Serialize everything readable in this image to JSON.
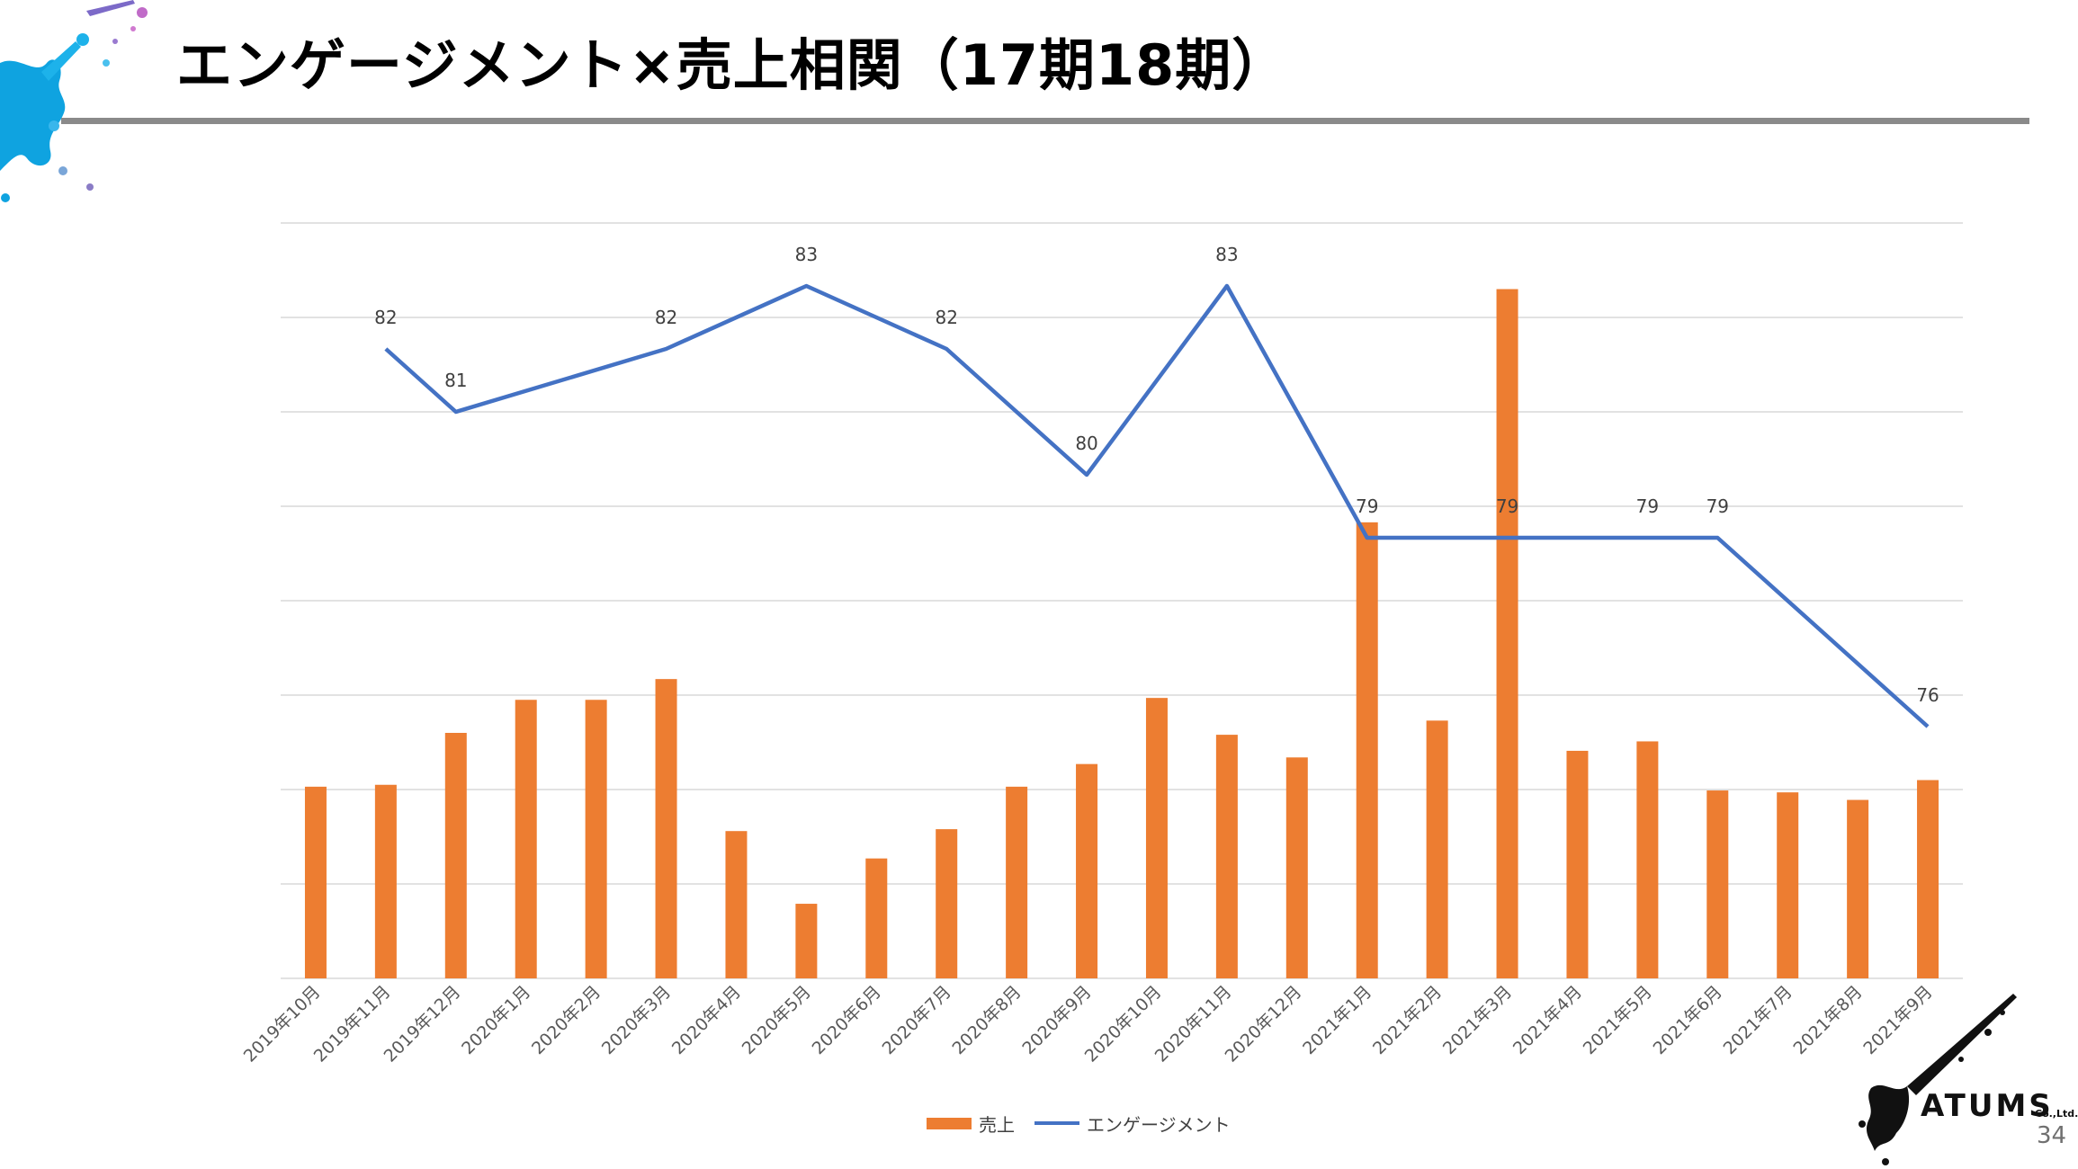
{
  "slide": {
    "title": "エンゲージメント×売上相関（17期18期）",
    "page_number": "34",
    "logo_text": "ATUMS",
    "logo_sub": "Co.,Ltd."
  },
  "colors": {
    "bar": "#ed7d31",
    "line": "#4472c4",
    "grid": "#d9d9d9",
    "rule": "#8a8a8a"
  },
  "chart_data": {
    "type": "bar+line",
    "title": "",
    "categories": [
      "2019年10月",
      "2019年11月",
      "2019年12月",
      "2020年1月",
      "2020年2月",
      "2020年3月",
      "2020年4月",
      "2020年5月",
      "2020年6月",
      "2020年7月",
      "2020年8月",
      "2020年9月",
      "2020年10月",
      "2020年11月",
      "2020年12月",
      "2021年1月",
      "2021年2月",
      "2021年3月",
      "2021年4月",
      "2021年5月",
      "2021年6月",
      "2021年7月",
      "2021年8月",
      "2021年9月"
    ],
    "series": [
      {
        "name": "売上",
        "type": "bar",
        "values": [
          2.03,
          2.05,
          2.6,
          2.95,
          2.95,
          3.17,
          1.56,
          0.79,
          1.27,
          1.58,
          2.03,
          2.27,
          2.97,
          2.58,
          2.34,
          4.83,
          2.73,
          7.3,
          2.41,
          2.51,
          1.99,
          1.97,
          1.89,
          2.1
        ]
      },
      {
        "name": "エンゲージメント",
        "type": "line",
        "values": [
          null,
          82,
          81,
          null,
          null,
          82,
          null,
          83,
          null,
          82,
          null,
          80,
          null,
          83,
          null,
          79,
          null,
          79,
          null,
          79,
          79,
          null,
          null,
          76
        ],
        "labels": [
          null,
          "82",
          "81",
          null,
          null,
          "82",
          null,
          "83",
          null,
          "82",
          null,
          "80",
          null,
          "83",
          null,
          "79",
          null,
          "79",
          null,
          "79",
          "79",
          null,
          null,
          "76"
        ],
        "connect_gaps": true
      }
    ],
    "xlabel": "",
    "ylabel": "",
    "ylim_bar": [
      0,
      8
    ],
    "ylim_line": [
      72,
      84
    ],
    "grid": true,
    "legend": "bottom"
  }
}
